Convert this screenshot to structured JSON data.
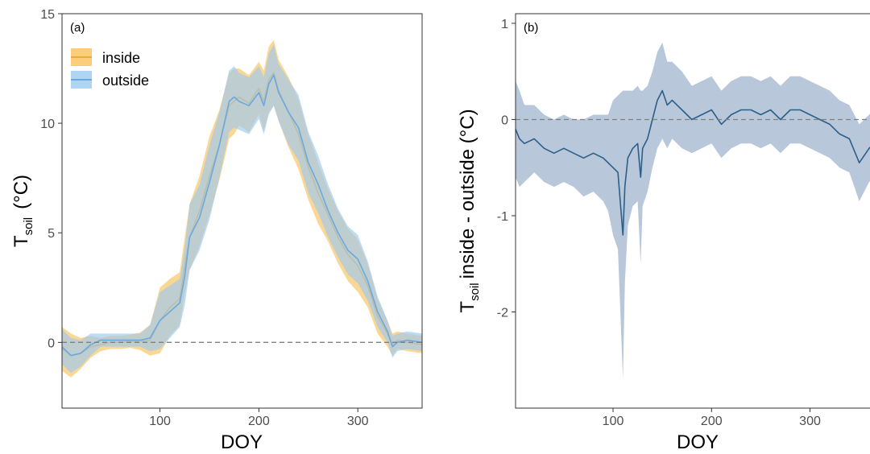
{
  "chart_data": [
    {
      "type": "line",
      "panel_label": "(a)",
      "xlabel": "DOY",
      "ylabel_main": "T",
      "ylabel_sub": "soil",
      "ylabel_rest": "(°C)",
      "xlim": [
        1,
        365
      ],
      "ylim": [
        -3.0,
        15
      ],
      "xticks": [
        100,
        200,
        300
      ],
      "yticks": [
        0,
        5,
        10,
        15
      ],
      "grid": false,
      "reference_line": 0,
      "legend_position": "top-left",
      "series": [
        {
          "name": "inside",
          "color": "#f0a830",
          "band_color": "#f9c25a",
          "x": [
            1,
            10,
            20,
            30,
            40,
            50,
            60,
            70,
            80,
            90,
            100,
            110,
            120,
            125,
            130,
            140,
            150,
            160,
            170,
            175,
            180,
            190,
            200,
            205,
            210,
            215,
            220,
            230,
            240,
            250,
            260,
            270,
            280,
            290,
            300,
            310,
            320,
            330,
            335,
            340,
            350,
            365
          ],
          "y": [
            -0.3,
            -0.6,
            -0.5,
            -0.2,
            -0.1,
            0.0,
            0.0,
            0.05,
            0.05,
            0.1,
            1.0,
            1.6,
            2.0,
            3.5,
            4.8,
            6.0,
            7.6,
            9.0,
            10.8,
            11.0,
            11.2,
            10.9,
            11.6,
            11.0,
            12.0,
            12.3,
            11.5,
            10.5,
            9.5,
            8.0,
            6.8,
            5.8,
            4.8,
            4.0,
            3.5,
            2.6,
            1.2,
            0.4,
            -0.1,
            0.1,
            0.0,
            -0.1
          ],
          "band": [
            1.0,
            1.0,
            0.7,
            0.5,
            0.3,
            0.3,
            0.3,
            0.3,
            0.4,
            0.7,
            1.5,
            1.3,
            1.2,
            1.3,
            1.5,
            1.6,
            1.8,
            1.6,
            1.5,
            1.5,
            1.3,
            1.3,
            1.2,
            1.4,
            1.5,
            1.5,
            1.4,
            1.6,
            1.6,
            1.5,
            1.4,
            1.2,
            1.2,
            1.2,
            1.2,
            1.0,
            0.8,
            0.6,
            0.5,
            0.4,
            0.4,
            0.4
          ]
        },
        {
          "name": "outside",
          "color": "#6aa9e0",
          "band_color": "#9ccaf0",
          "x": [
            1,
            10,
            20,
            30,
            40,
            50,
            60,
            70,
            80,
            90,
            100,
            110,
            120,
            125,
            130,
            140,
            150,
            160,
            170,
            175,
            180,
            190,
            200,
            205,
            210,
            215,
            220,
            230,
            240,
            250,
            260,
            270,
            280,
            290,
            300,
            310,
            320,
            330,
            335,
            340,
            350,
            365
          ],
          "y": [
            -0.2,
            -0.6,
            -0.5,
            -0.1,
            0.1,
            0.1,
            0.1,
            0.1,
            0.1,
            0.2,
            1.0,
            1.4,
            1.8,
            3.0,
            4.8,
            5.7,
            7.3,
            9.0,
            11.0,
            11.2,
            11.0,
            10.8,
            11.4,
            10.8,
            11.8,
            12.2,
            11.4,
            10.5,
            9.8,
            8.2,
            7.2,
            6.0,
            5.0,
            4.2,
            3.8,
            2.8,
            1.4,
            0.5,
            -0.2,
            0.0,
            0.1,
            0.0
          ],
          "band": [
            0.8,
            0.8,
            0.6,
            0.5,
            0.3,
            0.3,
            0.3,
            0.3,
            0.3,
            0.6,
            1.3,
            1.2,
            1.1,
            1.3,
            1.5,
            1.5,
            1.7,
            1.5,
            1.4,
            1.4,
            1.3,
            1.3,
            1.2,
            1.3,
            1.4,
            1.4,
            1.3,
            1.5,
            1.5,
            1.4,
            1.3,
            1.2,
            1.1,
            1.1,
            1.1,
            0.9,
            0.7,
            0.5,
            0.5,
            0.4,
            0.4,
            0.4
          ]
        }
      ]
    },
    {
      "type": "line",
      "panel_label": "(b)",
      "xlabel": "DOY",
      "ylabel_main": "T",
      "ylabel_sub": "soil",
      "ylabel_rest": "inside - outside (°C)",
      "xlim": [
        1,
        365
      ],
      "ylim": [
        -3.0,
        1.1
      ],
      "xticks": [
        100,
        200,
        300
      ],
      "yticks": [
        -2,
        -1,
        0,
        1
      ],
      "grid": false,
      "reference_line": 0,
      "series": [
        {
          "color": "#2c5f8a",
          "band_color": "#92a9c4",
          "x": [
            1,
            5,
            10,
            20,
            30,
            40,
            50,
            60,
            70,
            80,
            90,
            95,
            100,
            105,
            110,
            112,
            115,
            120,
            125,
            128,
            130,
            135,
            140,
            145,
            150,
            155,
            160,
            170,
            180,
            190,
            200,
            210,
            220,
            230,
            240,
            250,
            260,
            270,
            280,
            290,
            300,
            310,
            320,
            330,
            340,
            350,
            360,
            365
          ],
          "y": [
            -0.1,
            -0.2,
            -0.25,
            -0.2,
            -0.3,
            -0.35,
            -0.3,
            -0.35,
            -0.4,
            -0.35,
            -0.4,
            -0.45,
            -0.5,
            -0.55,
            -1.2,
            -0.7,
            -0.4,
            -0.3,
            -0.25,
            -0.6,
            -0.3,
            -0.2,
            0.0,
            0.2,
            0.3,
            0.15,
            0.2,
            0.1,
            0.0,
            0.05,
            0.1,
            -0.05,
            0.05,
            0.1,
            0.1,
            0.05,
            0.1,
            0.0,
            0.1,
            0.1,
            0.05,
            0.0,
            -0.05,
            -0.15,
            -0.2,
            -0.45,
            -0.3,
            -0.25
          ],
          "band": [
            0.5,
            0.5,
            0.4,
            0.35,
            0.35,
            0.35,
            0.35,
            0.35,
            0.4,
            0.4,
            0.45,
            0.5,
            0.7,
            0.8,
            1.5,
            1.0,
            0.7,
            0.6,
            0.6,
            0.9,
            0.6,
            0.55,
            0.5,
            0.5,
            0.5,
            0.45,
            0.4,
            0.4,
            0.35,
            0.35,
            0.35,
            0.35,
            0.35,
            0.35,
            0.35,
            0.35,
            0.35,
            0.35,
            0.35,
            0.35,
            0.35,
            0.35,
            0.35,
            0.35,
            0.35,
            0.4,
            0.35,
            0.35
          ]
        }
      ]
    }
  ]
}
